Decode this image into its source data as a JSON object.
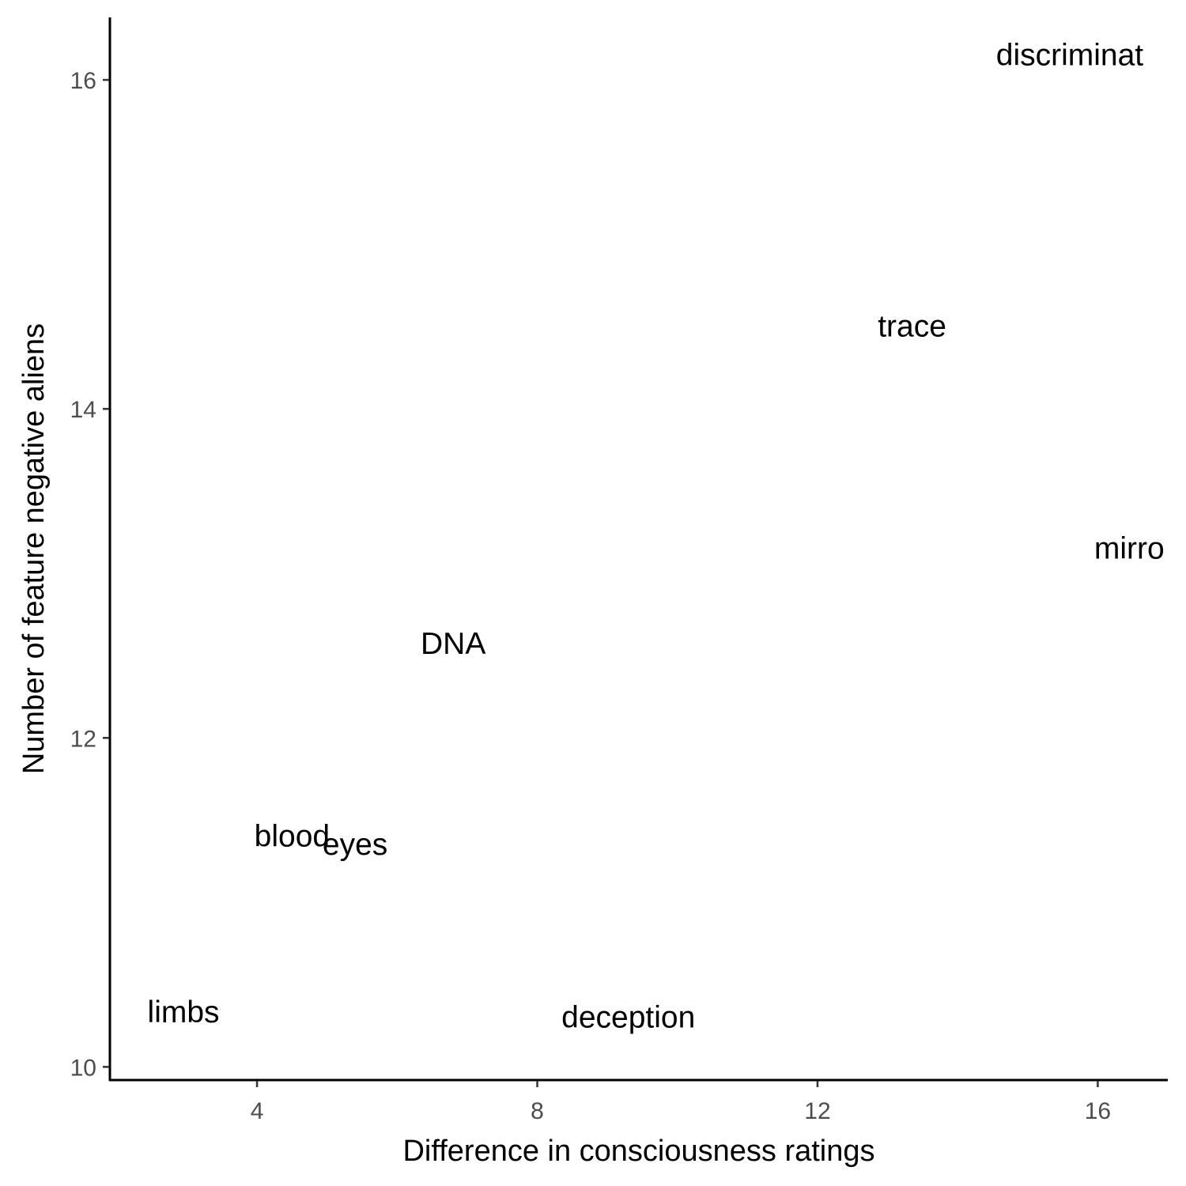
{
  "chart_data": {
    "type": "scatter",
    "marker": "text",
    "xlabel": "Difference in consciousness ratings",
    "ylabel": "Number of feature negative aliens",
    "xlim": [
      1.9,
      17.0
    ],
    "ylim": [
      9.92,
      16.38
    ],
    "xticks": [
      4,
      8,
      12,
      16
    ],
    "yticks": [
      10,
      12,
      14,
      16
    ],
    "grid": false,
    "legend": "none",
    "points": [
      {
        "label": "discriminat",
        "x": 15.6,
        "y": 16.15
      },
      {
        "label": "trace",
        "x": 13.35,
        "y": 14.5
      },
      {
        "label": "mirro",
        "x": 16.45,
        "y": 13.15
      },
      {
        "label": "DNA",
        "x": 6.8,
        "y": 12.57
      },
      {
        "label": "blood",
        "x": 4.5,
        "y": 11.4
      },
      {
        "label": "eyes",
        "x": 5.4,
        "y": 11.35
      },
      {
        "label": "limbs",
        "x": 2.95,
        "y": 10.33
      },
      {
        "label": "deception",
        "x": 9.3,
        "y": 10.3
      }
    ]
  }
}
